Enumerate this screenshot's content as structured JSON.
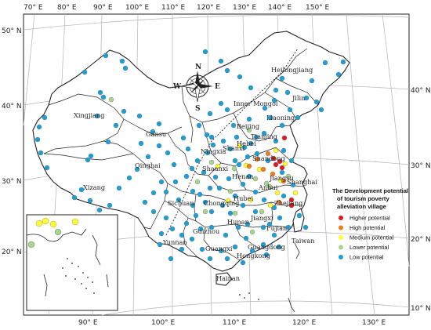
{
  "colors": {
    "higher": "#e31a1c",
    "high": "#f47c20",
    "medium": "#ffff33",
    "lower": "#a6d48f",
    "low": "#1b9fd9"
  },
  "axes": {
    "top": [
      "70° E",
      "80° E",
      "90° E",
      "100° E",
      "110° E",
      "120° E",
      "130° E",
      "140° E",
      "150° E"
    ],
    "bottom": [
      "90° E",
      "100° E",
      "110° E",
      "120° E",
      "130° E"
    ],
    "left": [
      "50° N",
      "40° N",
      "30° N",
      "20° N"
    ],
    "right": [
      "40° N",
      "30° N",
      "20° N",
      "10° N"
    ]
  },
  "compass": {
    "n": "N",
    "s": "S",
    "e": "E",
    "w": "W"
  },
  "legend": {
    "title_lines": [
      "The Development potential",
      "of tourism poverty",
      "alleviation village"
    ],
    "items": [
      {
        "label": "Higher potential",
        "color_key": "higher"
      },
      {
        "label": "High potential",
        "color_key": "high"
      },
      {
        "label": "Medium potential",
        "color_key": "medium"
      },
      {
        "label": "Lower potential",
        "color_key": "lower"
      },
      {
        "label": "Low potential",
        "color_key": "low"
      }
    ]
  },
  "provinces": {
    "heilongjiang": "Heilongjiang",
    "inner_mongol": "Inner Mongol",
    "jilin": "Jilin",
    "liaoning": "Liaoning",
    "xingjiang": "Xingjiang",
    "gansu": "Gansu",
    "beijing": "Beijing",
    "tianjing": "Tianjing",
    "hebei": "Hebei",
    "ningxia": "Ningxia",
    "shanxi": "Shanxi",
    "qinghai": "Qinghai",
    "shandong": "Shandong",
    "shaanxi": "Shaanxi",
    "henan": "Henan",
    "jiangsu": "Jiangsu",
    "shanghai": "Shanghai",
    "xizang": "Xizang",
    "anhui": "Anhui",
    "hubei": "Hubei",
    "zhejiang": "Zhejiang",
    "sichuan": "Sichuan",
    "chongqing": "Chongqing",
    "hunan": "Hunan",
    "jiangxi": "Jiangxi",
    "guizhou": "Guizhou",
    "fujian": "Fujian",
    "taiwan": "Taiwan",
    "yunnan": "Yunnan",
    "guangxi": "Guangxi",
    "guangdong": "Guangdong",
    "hongkong": "Hongkong",
    "hainan": "Hainan"
  },
  "villages": {
    "low": [
      [
        438,
        79
      ],
      [
        415,
        80
      ],
      [
        432,
        95
      ],
      [
        398,
        103
      ],
      [
        360,
        100
      ],
      [
        352,
        115
      ],
      [
        367,
        118
      ],
      [
        391,
        125
      ],
      [
        404,
        130
      ],
      [
        410,
        140
      ],
      [
        380,
        150
      ],
      [
        350,
        128
      ],
      [
        338,
        138
      ],
      [
        345,
        150
      ],
      [
        318,
        152
      ],
      [
        298,
        160
      ],
      [
        302,
        175
      ],
      [
        285,
        180
      ],
      [
        294,
        190
      ],
      [
        272,
        185
      ],
      [
        265,
        195
      ],
      [
        252,
        205
      ],
      [
        245,
        215
      ],
      [
        260,
        220
      ],
      [
        275,
        226
      ],
      [
        268,
        240
      ],
      [
        255,
        248
      ],
      [
        246,
        262
      ],
      [
        250,
        275
      ],
      [
        238,
        285
      ],
      [
        232,
        300
      ],
      [
        245,
        305
      ],
      [
        256,
        292
      ],
      [
        270,
        290
      ],
      [
        288,
        300
      ],
      [
        300,
        315
      ],
      [
        314,
        304
      ],
      [
        322,
        320
      ],
      [
        336,
        312
      ],
      [
        350,
        300
      ],
      [
        344,
        286
      ],
      [
        357,
        278
      ],
      [
        326,
        270
      ],
      [
        310,
        262
      ],
      [
        300,
        250
      ],
      [
        310,
        235
      ],
      [
        326,
        245
      ],
      [
        337,
        255
      ],
      [
        318,
        225
      ],
      [
        305,
        210
      ],
      [
        328,
        196
      ],
      [
        342,
        205
      ],
      [
        320,
        183
      ],
      [
        337,
        170
      ],
      [
        352,
        180
      ],
      [
        362,
        192
      ],
      [
        372,
        205
      ],
      [
        360,
        220
      ],
      [
        374,
        236
      ],
      [
        362,
        250
      ],
      [
        372,
        262
      ],
      [
        382,
        275
      ],
      [
        390,
        290
      ],
      [
        368,
        290
      ],
      [
        356,
        315
      ],
      [
        340,
        325
      ],
      [
        310,
        335
      ],
      [
        282,
        320
      ],
      [
        268,
        330
      ],
      [
        258,
        318
      ],
      [
        232,
        318
      ],
      [
        218,
        330
      ],
      [
        204,
        312
      ],
      [
        206,
        298
      ],
      [
        220,
        292
      ],
      [
        212,
        278
      ],
      [
        196,
        270
      ],
      [
        185,
        258
      ],
      [
        196,
        246
      ],
      [
        206,
        232
      ],
      [
        224,
        232
      ],
      [
        238,
        225
      ],
      [
        222,
        210
      ],
      [
        214,
        195
      ],
      [
        203,
        186
      ],
      [
        189,
        200
      ],
      [
        175,
        216
      ],
      [
        165,
        227
      ],
      [
        152,
        240
      ],
      [
        140,
        262
      ],
      [
        127,
        268
      ],
      [
        115,
        256
      ],
      [
        104,
        242
      ],
      [
        95,
        252
      ],
      [
        180,
        183
      ],
      [
        195,
        168
      ],
      [
        203,
        158
      ],
      [
        178,
        148
      ],
      [
        158,
        142
      ],
      [
        148,
        160
      ],
      [
        138,
        181
      ],
      [
        116,
        199
      ],
      [
        112,
        204
      ],
      [
        60,
        214
      ],
      [
        52,
        195
      ],
      [
        48,
        178
      ],
      [
        50,
        162
      ],
      [
        57,
        150
      ],
      [
        108,
        92
      ],
      [
        128,
        118
      ],
      [
        132,
        124
      ],
      [
        124,
        148
      ],
      [
        135,
        71
      ],
      [
        156,
        78
      ],
      [
        160,
        87
      ],
      [
        262,
        66
      ],
      [
        282,
        78
      ],
      [
        290,
        90
      ],
      [
        306,
        98
      ],
      [
        320,
        112
      ],
      [
        282,
        132
      ],
      [
        268,
        145
      ],
      [
        254,
        160
      ],
      [
        264,
        172
      ],
      [
        234,
        176
      ],
      [
        240,
        190
      ],
      [
        262,
        258
      ],
      [
        284,
        262
      ],
      [
        294,
        272
      ],
      [
        270,
        270
      ],
      [
        280,
        240
      ],
      [
        292,
        228
      ],
      [
        300,
        205
      ],
      [
        316,
        200
      ],
      [
        327,
        175
      ],
      [
        290,
        140
      ],
      [
        270,
        175
      ],
      [
        246,
        244
      ],
      [
        228,
        255
      ],
      [
        212,
        245
      ],
      [
        304,
        290
      ],
      [
        290,
        330
      ],
      [
        316,
        286
      ],
      [
        336,
        290
      ],
      [
        350,
        265
      ],
      [
        312,
        188
      ],
      [
        360,
        160
      ],
      [
        370,
        140
      ]
    ],
    "lower": [
      [
        142,
        127
      ],
      [
        270,
        207
      ],
      [
        299,
        215
      ],
      [
        326,
        228
      ],
      [
        340,
        234
      ],
      [
        300,
        272
      ],
      [
        322,
        296
      ],
      [
        334,
        270
      ],
      [
        262,
        270
      ],
      [
        344,
        238
      ],
      [
        252,
        232
      ],
      [
        318,
        166
      ],
      [
        294,
        244
      ],
      [
        368,
        225
      ]
    ],
    "medium": [
      [
        352,
        192
      ],
      [
        364,
        209
      ],
      [
        358,
        230
      ],
      [
        377,
        246
      ],
      [
        314,
        211
      ],
      [
        331,
        216
      ],
      [
        306,
        186
      ],
      [
        345,
        262
      ],
      [
        291,
        256
      ],
      [
        320,
        255
      ],
      [
        278,
        212
      ],
      [
        354,
        246
      ]
    ],
    "high": [
      [
        318,
        212
      ],
      [
        328,
        203
      ],
      [
        342,
        196
      ],
      [
        348,
        222
      ],
      [
        362,
        231
      ],
      [
        336,
        216
      ],
      [
        356,
        258
      ]
    ],
    "higher": [
      [
        349,
        202
      ],
      [
        357,
        206
      ],
      [
        360,
        214
      ],
      [
        352,
        210
      ],
      [
        372,
        262
      ],
      [
        363,
        176
      ],
      [
        372,
        255
      ]
    ],
    "inset_medium": [
      [
        50,
        285
      ],
      [
        58,
        282
      ],
      [
        68,
        286
      ],
      [
        96,
        283
      ]
    ],
    "inset_lower": [
      [
        40,
        312
      ],
      [
        74,
        296
      ]
    ]
  }
}
